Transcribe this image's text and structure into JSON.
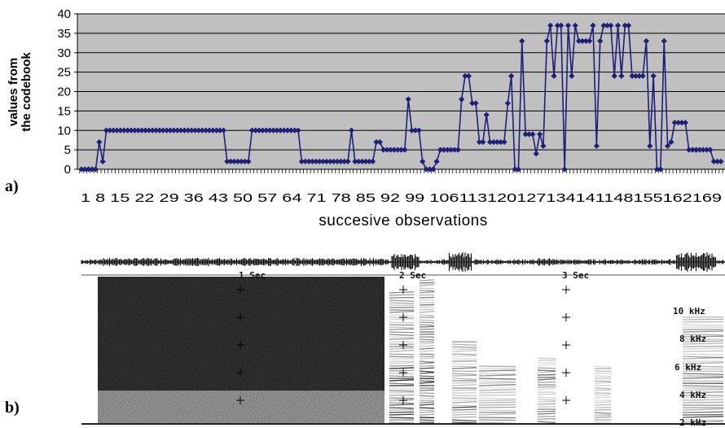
{
  "chart_data": {
    "type": "line",
    "title": "",
    "ylabel_lines": [
      "values from",
      "the codebook"
    ],
    "xlabel": "succesive observations",
    "ylim": [
      0,
      40
    ],
    "yticks": [
      0,
      5,
      10,
      15,
      20,
      25,
      30,
      35,
      40
    ],
    "xtick_labels": [
      "1",
      "8",
      "15",
      "22",
      "29",
      "36",
      "43",
      "50",
      "57",
      "64",
      "71",
      "78",
      "85",
      "92",
      "99",
      "106",
      "113",
      "120",
      "127",
      "134",
      "141",
      "148",
      "155",
      "162",
      "169"
    ],
    "xtick_label_text": "1 8 15 22 29 36 43 50 57 64 71 78 85 92 99 106113120127134141148155162169",
    "grid": true,
    "background_color": "#c0c0c0",
    "series_color": "#1f1f7a",
    "series": [
      {
        "values": [
          0,
          0,
          0,
          0,
          0,
          7,
          2,
          10,
          10,
          10,
          10,
          10,
          10,
          10,
          10,
          10,
          10,
          10,
          10,
          10,
          10,
          10,
          10,
          10,
          10,
          10,
          10,
          10,
          10,
          10,
          10,
          10,
          10,
          10,
          10,
          10,
          10,
          10,
          10,
          10,
          10,
          2,
          2,
          2,
          2,
          2,
          2,
          2,
          10,
          10,
          10,
          10,
          10,
          10,
          10,
          10,
          10,
          10,
          10,
          10,
          10,
          10,
          2,
          2,
          2,
          2,
          2,
          2,
          2,
          2,
          2,
          2,
          2,
          2,
          2,
          2,
          10,
          2,
          2,
          2,
          2,
          2,
          2,
          7,
          7,
          5,
          5,
          5,
          5,
          5,
          5,
          5,
          18,
          10,
          10,
          10,
          2,
          0,
          0,
          0,
          2,
          5,
          5,
          5,
          5,
          5,
          5,
          18,
          24,
          24,
          17,
          17,
          7,
          7,
          14,
          7,
          7,
          7,
          7,
          7,
          17,
          24,
          0,
          0,
          33,
          9,
          9,
          9,
          4,
          9,
          6,
          33,
          37,
          24,
          37,
          37,
          0,
          37,
          24,
          37,
          33,
          33,
          33,
          33,
          37,
          6,
          33,
          37,
          37,
          37,
          24,
          37,
          24,
          37,
          37,
          24,
          24,
          24,
          24,
          33,
          6,
          24,
          0,
          0,
          33,
          6,
          7,
          12,
          12,
          12,
          12,
          5,
          5,
          5,
          5,
          5,
          5,
          5,
          2,
          2,
          2
        ]
      }
    ]
  },
  "panels": {
    "a_label": "a)",
    "b_label": "b)"
  },
  "spectrogram": {
    "time_labels": [
      "1  Sec",
      "2  Sec",
      "3  Sec"
    ],
    "freq_labels": [
      "10 kHz",
      "8 kHz",
      "6 kHz",
      "4 kHz",
      "2 kHz"
    ]
  }
}
